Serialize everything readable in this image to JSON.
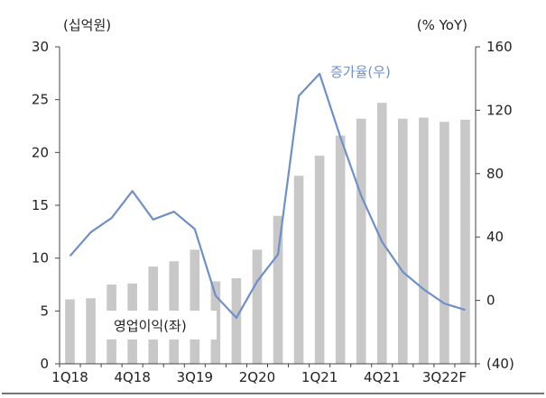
{
  "chart_data": {
    "type": "bar+line",
    "left_unit": "(십억원)",
    "right_unit": "(% YoY)",
    "categories": [
      "1Q18",
      "2Q18",
      "3Q18",
      "4Q18",
      "1Q19",
      "2Q19",
      "3Q19",
      "4Q19",
      "1Q20",
      "2Q20",
      "3Q20",
      "4Q20",
      "1Q21",
      "2Q21",
      "3Q21",
      "4Q21",
      "1Q22",
      "2Q22",
      "3Q22F",
      "4Q22F"
    ],
    "x_tick_labels": [
      "1Q18",
      "4Q18",
      "3Q19",
      "2Q20",
      "1Q21",
      "4Q21",
      "3Q22F"
    ],
    "y_left": {
      "min": 0,
      "max": 30,
      "ticks": [
        0,
        5,
        10,
        15,
        20,
        25,
        30
      ]
    },
    "y_right": {
      "min": -40,
      "max": 160,
      "ticks": [
        -40,
        0,
        40,
        80,
        120,
        160
      ],
      "tick_labels": [
        "(40)",
        "0",
        "40",
        "80",
        "120",
        "160"
      ]
    },
    "series": [
      {
        "name": "영업이익(좌)",
        "type": "bar",
        "axis": "left",
        "color": "#c8c8c8",
        "values": [
          6.1,
          6.2,
          7.5,
          7.6,
          9.2,
          9.7,
          10.8,
          7.8,
          8.1,
          10.8,
          14.0,
          17.8,
          19.7,
          21.6,
          23.2,
          24.7,
          23.2,
          23.3,
          22.9,
          23.1
        ]
      },
      {
        "name": "증가율(우)",
        "type": "line",
        "axis": "right",
        "color": "#6f8fc8",
        "values": [
          28,
          43,
          52,
          69,
          51,
          56,
          45,
          3,
          -11,
          12,
          29,
          129,
          143,
          103,
          66,
          37,
          18,
          7,
          -2,
          -6
        ]
      }
    ]
  }
}
